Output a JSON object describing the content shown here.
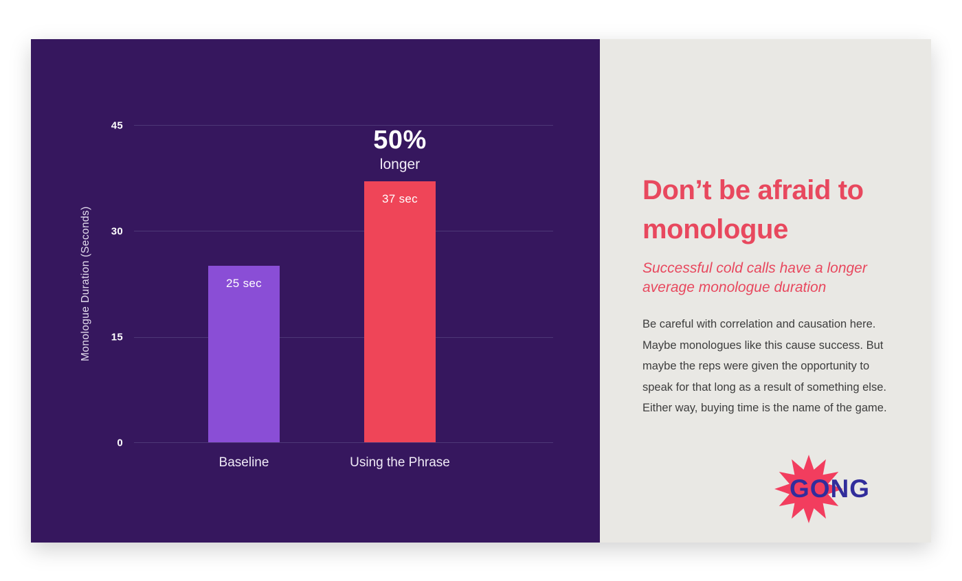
{
  "chart_data": {
    "type": "bar",
    "categories": [
      "Baseline",
      "Using the Phrase"
    ],
    "values": [
      25,
      37
    ],
    "value_labels": [
      "25 sec",
      "37 sec"
    ],
    "annotation": {
      "headline": "50%",
      "subtext": "longer"
    },
    "title": "",
    "xlabel": "",
    "ylabel": "Monologue Duration (Seconds)",
    "yticks": [
      "45",
      "30",
      "15",
      "0"
    ],
    "ylim": [
      0,
      45
    ],
    "grid": true,
    "legend": "none",
    "colors": {
      "background": "#36175e",
      "bars": [
        "#8a4ed6",
        "#ef4558"
      ],
      "gridline": "#4e3877",
      "labels": "#ffffff"
    }
  },
  "panel": {
    "heading": "Don’t be afraid to monologue",
    "subtitle": "Successful cold calls have a longer average monologue duration",
    "body": "Be careful with correlation and causation here. Maybe monologues like this cause success. But maybe the reps were given the opportunity to speak for that long as a result of something else. Either way, buying time is the name of the game.",
    "colors": {
      "heading": "#e8485e",
      "background": "#e9e8e4",
      "body_text": "#3d3d3d"
    },
    "logo": {
      "text": "GONG",
      "star_color": "#f23d5e",
      "text_color": "#312d9b"
    }
  }
}
